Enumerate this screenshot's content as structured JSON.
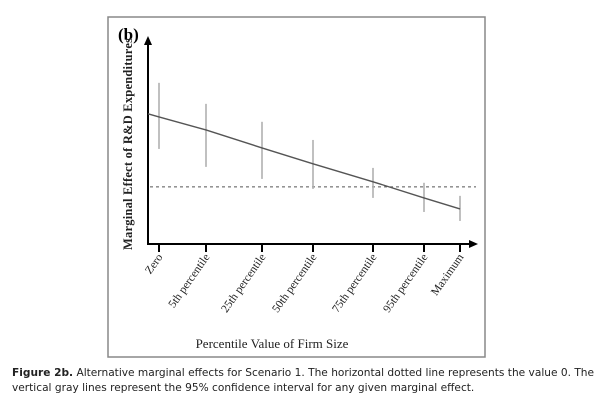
{
  "chart_data": {
    "type": "line",
    "panel_label": "(b)",
    "xlabel": "Percentile Value of Firm Size",
    "ylabel": "Marginal Effect of  R&D Expenditures",
    "categories": [
      "Zero",
      "5th percentile",
      "25th percentile",
      "50th percentile",
      "75th percentile",
      "95th percentile",
      "Maximum"
    ],
    "series": [
      {
        "values": [
          34.3,
          27.9,
          19.1,
          11.3,
          2.5,
          -5.4,
          -10.8
        ],
        "ci_low": [
          18.6,
          9.8,
          3.9,
          -1.0,
          -5.4,
          -12.3,
          -16.7
        ],
        "ci_high": [
          51.0,
          40.7,
          31.9,
          23.0,
          9.3,
          2.0,
          -4.4
        ]
      }
    ],
    "reference_line": 0,
    "ylim": [
      -28,
      72
    ],
    "y_tick_labels": false,
    "grid": false,
    "colors": {
      "line": "#555555",
      "ci": "#b0b0b0",
      "reference": "#555555",
      "axis": "#000000",
      "frame": "#888888"
    }
  },
  "caption": {
    "label": "Figure 2b.",
    "text": " Alternative marginal effects for Scenario 1. The horizontal dotted line represents the value 0. The vertical gray lines represent the 95% confidence interval for any given marginal effect."
  }
}
